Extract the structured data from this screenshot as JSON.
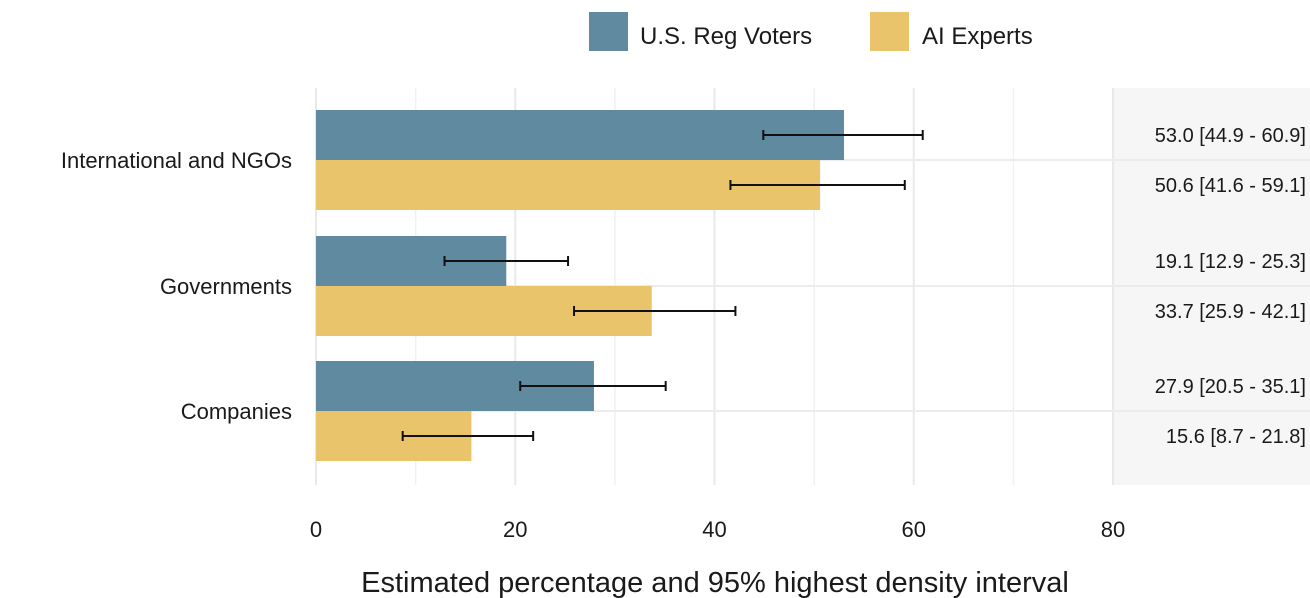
{
  "chart_data": {
    "type": "bar",
    "orientation": "horizontal",
    "categories": [
      "International and NGOs",
      "Governments",
      "Companies"
    ],
    "series": [
      {
        "name": "U.S. Reg Voters",
        "color": "#5f8aa0",
        "values": [
          53.0,
          19.1,
          27.9
        ],
        "lower": [
          44.9,
          12.9,
          20.5
        ],
        "upper": [
          60.9,
          25.3,
          35.1
        ],
        "labels": [
          "53.0 [44.9 - 60.9]",
          "19.1 [12.9 - 25.3]",
          "27.9 [20.5 - 35.1]"
        ]
      },
      {
        "name": "AI Experts",
        "color": "#e9c46a",
        "values": [
          50.6,
          33.7,
          15.6
        ],
        "lower": [
          41.6,
          25.9,
          8.7
        ],
        "upper": [
          59.1,
          42.1,
          21.8
        ],
        "labels": [
          "50.6 [41.6 - 59.1]",
          "33.7 [25.9 - 42.1]",
          "15.6 [8.7 - 21.8]"
        ]
      }
    ],
    "xlabel": "Estimated percentage and 95% highest density interval",
    "ylabel": "",
    "xlim": [
      0,
      80
    ],
    "xticks": [
      0,
      20,
      40,
      60,
      80
    ],
    "grid": true,
    "legend": "top"
  }
}
